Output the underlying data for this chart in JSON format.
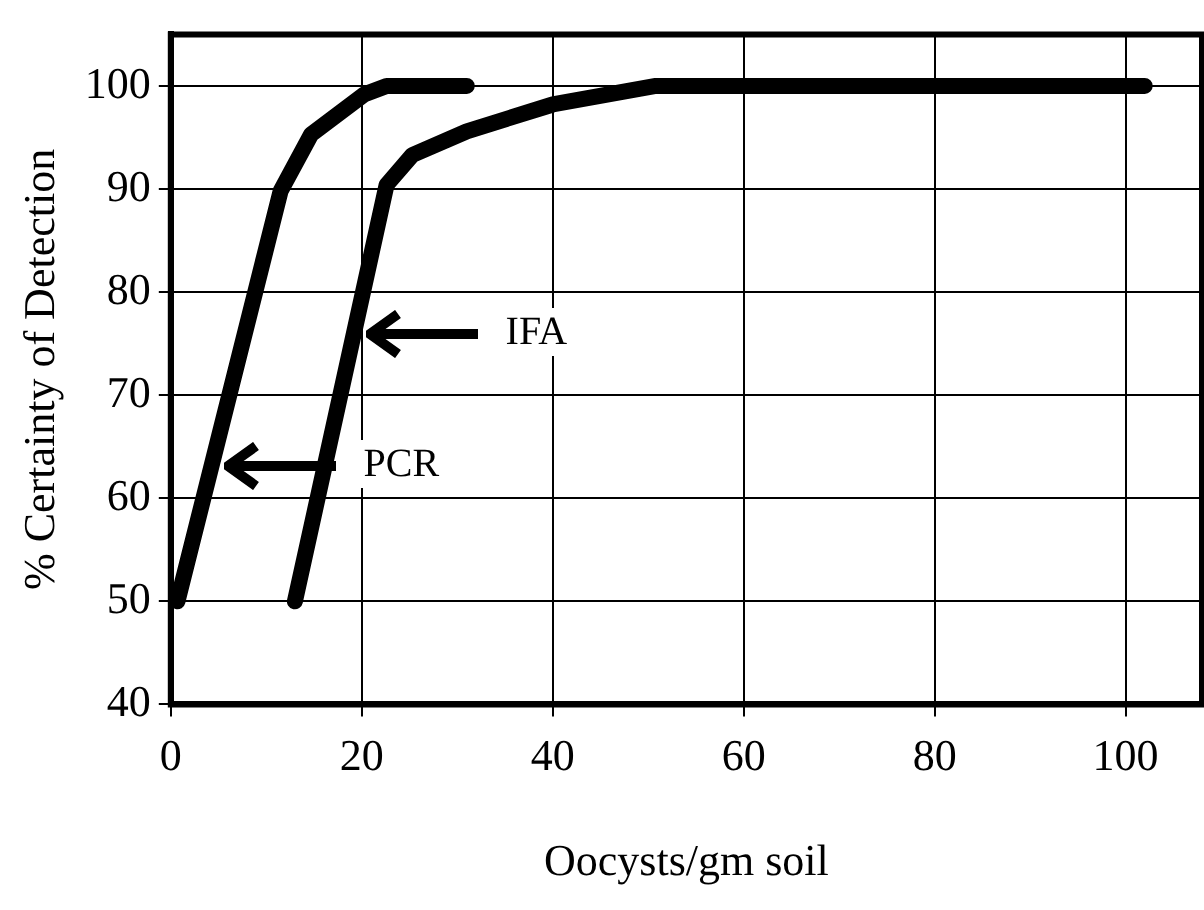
{
  "chart_data": {
    "type": "line",
    "xlabel": "Oocysts/gm soil",
    "ylabel": "% Certainty of Detection",
    "series": [
      {
        "name": "PCR",
        "color": "#000000",
        "x": [
          0.7,
          11.5,
          14.7,
          20.3,
          22.6,
          31
        ],
        "values": [
          50,
          89.8,
          95.3,
          99.2,
          100,
          100
        ]
      },
      {
        "name": "IFA",
        "color": "#000000",
        "x": [
          13,
          22.6,
          25.3,
          31,
          40,
          50.8,
          102
        ],
        "values": [
          50,
          90.4,
          93.3,
          95.6,
          98.2,
          100,
          100
        ]
      }
    ],
    "xlim": [
      0,
      108
    ],
    "xticks": [
      0,
      20,
      40,
      60,
      80,
      100
    ],
    "ylim": [
      40,
      105
    ],
    "yticks": [
      40,
      50,
      60,
      70,
      80,
      90,
      100
    ],
    "grid": true,
    "legend": "left",
    "marker": "none",
    "line_style": "solid"
  }
}
